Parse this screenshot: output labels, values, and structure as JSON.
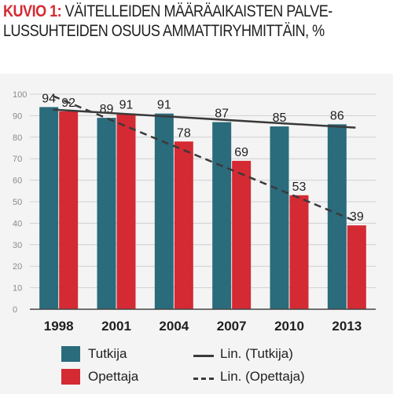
{
  "title": {
    "prefix": "KUVIO 1:",
    "line1": "VÄITELLEIDEN MÄÄRÄAIKAISTEN PALVE-",
    "line2": "LUSSUHTEIDEN OSUUS AMMATTIRYHMITTÄIN, %"
  },
  "colors": {
    "tutkija": "#2a6b7c",
    "opettaja": "#d42a33",
    "trend": "#3a3a3a"
  },
  "chart_data": {
    "type": "bar",
    "categories": [
      "1998",
      "2001",
      "2004",
      "2007",
      "2010",
      "2013"
    ],
    "series": [
      {
        "name": "Tutkija",
        "values": [
          94,
          89,
          91,
          87,
          85,
          86
        ]
      },
      {
        "name": "Opettaja",
        "values": [
          92,
          91,
          78,
          69,
          53,
          39
        ]
      }
    ],
    "trendlines": [
      {
        "name": "Lin. (Tutkija)",
        "of": "Tutkija",
        "style": "solid"
      },
      {
        "name": "Lin. (Opettaja)",
        "of": "Opettaja",
        "style": "dashed"
      }
    ],
    "yticks": [
      "100",
      "90",
      "80",
      "70",
      "60",
      "50",
      "40",
      "30",
      "20",
      "10",
      "0"
    ],
    "ylim": [
      0,
      100
    ],
    "grid": true,
    "data_labels": true,
    "legend_position": "bottom"
  },
  "legend": {
    "tutkija": "Tutkija",
    "opettaja": "Opettaja",
    "lin_tutkija": "Lin. (Tutkija)",
    "lin_opettaja": "Lin. (Opettaja)"
  }
}
